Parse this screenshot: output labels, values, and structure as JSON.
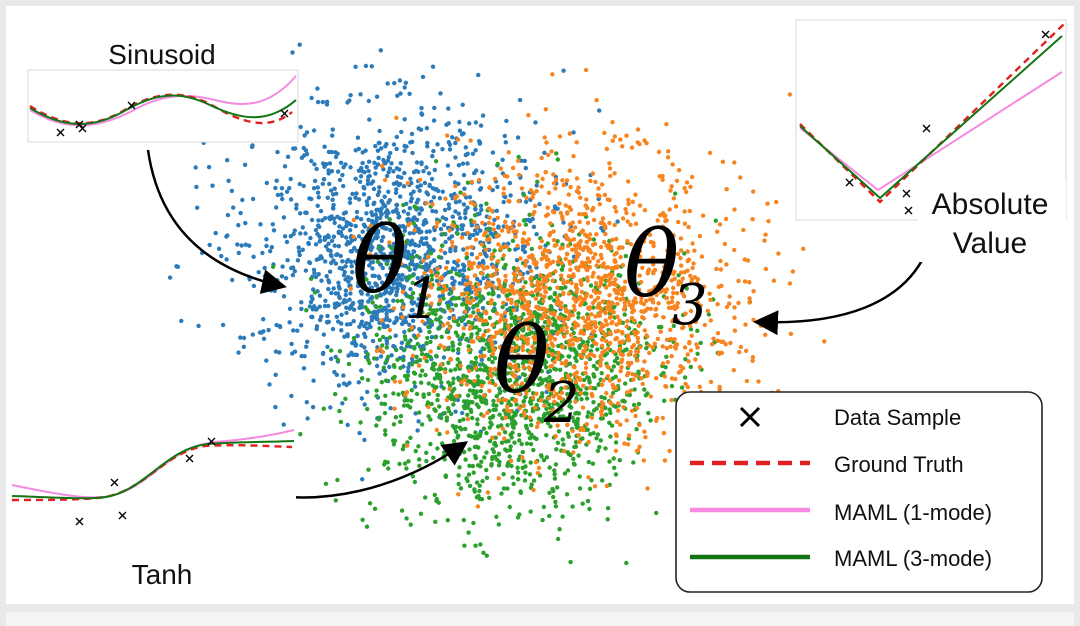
{
  "clusters": [
    {
      "name": "theta1",
      "symbol": "θ",
      "subscript": "1",
      "color": "#2b7bba"
    },
    {
      "name": "theta2",
      "symbol": "θ",
      "subscript": "2",
      "color": "#f7841f"
    },
    {
      "name": "theta3",
      "symbol": "θ",
      "subscript": "3",
      "color": "#2ca02c"
    }
  ],
  "insets": {
    "sinusoid": {
      "title": "Sinusoid"
    },
    "absolute_value": {
      "title_line1": "Absolute",
      "title_line2": "Value"
    },
    "tanh": {
      "title": "Tanh"
    }
  },
  "legend": {
    "items": [
      {
        "label": "Data Sample",
        "style": "marker-x",
        "color": "#000000"
      },
      {
        "label": "Ground Truth",
        "style": "dashed",
        "color": "#e02020"
      },
      {
        "label": "MAML (1-mode)",
        "style": "solid",
        "color": "#f58ae0"
      },
      {
        "label": "MAML (3-mode)",
        "style": "solid",
        "color": "#127512"
      }
    ]
  },
  "colors": {
    "ground_truth": "#e02020",
    "maml_1mode": "#f58ae0",
    "maml_3mode": "#127512",
    "sample": "#000000"
  }
}
